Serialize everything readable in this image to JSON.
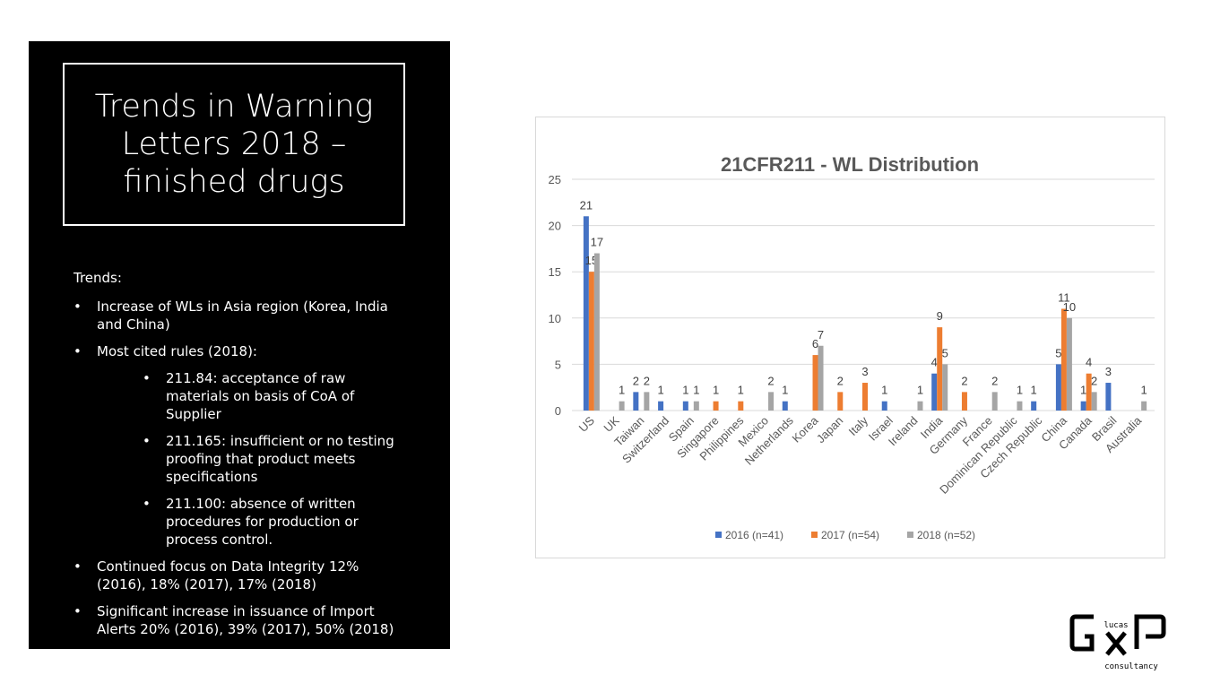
{
  "slide": {
    "title": "Trends in Warning Letters 2018 – finished drugs",
    "trends_heading": "Trends:",
    "bullets": [
      {
        "text": "Increase of WLs in Asia region (Korea, India and China)"
      },
      {
        "text": "Most cited rules (2018):",
        "sub": [
          "211.84: acceptance of raw materials on basis of CoA of Supplier",
          "211.165: insufficient or no testing proofing that product meets specifications",
          "211.100: absence of written procedures for production or process control."
        ]
      },
      {
        "text": "Continued focus on Data Integrity 12% (2016), 18% (2017), 17% (2018)"
      },
      {
        "text": "Significant increase in issuance of Import Alerts 20% (2016), 39% (2017), 50% (2018)"
      }
    ]
  },
  "logo": {
    "text_top": "lucas",
    "text_bottom": "consultancy",
    "letters": "GxP"
  },
  "chart_data": {
    "type": "bar",
    "title": "21CFR211 - WL Distribution",
    "xlabel": "",
    "ylabel": "",
    "ylim": [
      0,
      25
    ],
    "yticks": [
      0,
      5,
      10,
      15,
      20,
      25
    ],
    "grid": true,
    "legend": "bottom",
    "categories": [
      "US",
      "UK",
      "Taiwan",
      "Switzerland",
      "Spain",
      "Singapore",
      "Philippines",
      "Mexico",
      "Netherlands",
      "Korea",
      "Japan",
      "Italy",
      "Israel",
      "Ireland",
      "India",
      "Germany",
      "France",
      "Dominican Republic",
      "Czech Republic",
      "China",
      "Canada",
      "Brasil",
      "Australia"
    ],
    "series": [
      {
        "name": "2016 (n=41)",
        "color": "#4472c4",
        "values": [
          21,
          0,
          2,
          1,
          1,
          0,
          0,
          0,
          1,
          0,
          0,
          0,
          1,
          0,
          4,
          0,
          0,
          0,
          1,
          5,
          1,
          3,
          0
        ]
      },
      {
        "name": "2017 (n=54)",
        "color": "#ed7d31",
        "values": [
          15,
          0,
          0,
          0,
          0,
          1,
          1,
          0,
          0,
          6,
          2,
          3,
          0,
          0,
          9,
          2,
          0,
          0,
          0,
          11,
          4,
          0,
          0
        ]
      },
      {
        "name": "2018 (n=52)",
        "color": "#a5a5a5",
        "values": [
          17,
          1,
          2,
          0,
          1,
          0,
          0,
          2,
          0,
          7,
          0,
          0,
          0,
          1,
          5,
          0,
          2,
          1,
          0,
          10,
          2,
          0,
          1
        ]
      }
    ]
  }
}
